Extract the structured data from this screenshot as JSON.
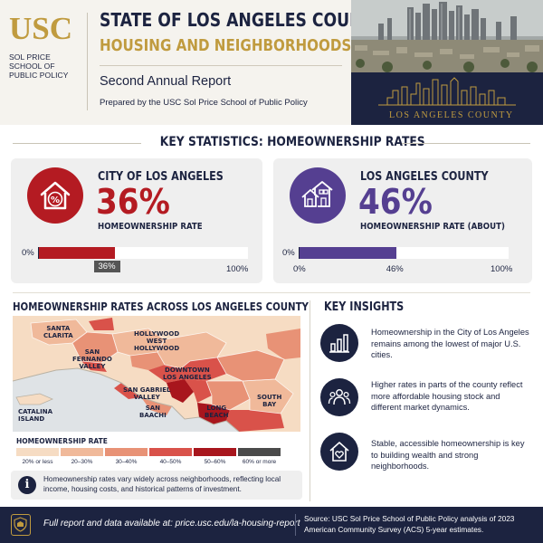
{
  "header": {
    "logo_text": "USC",
    "logo_sub": "SOL PRICE SCHOOL OF PUBLIC POLICY",
    "title_line1": "STATE OF LOS ANGELES COUNTY",
    "title_line2": "HOUSING AND NEIGHBORHOODS",
    "report_title": "Second Annual Report",
    "prepared_by": "Prepared by the USC Sol Price School of Public Policy",
    "photo_caption": "LOS ANGELES COUNTY"
  },
  "key_stats": {
    "section_title": "KEY STATISTICS: HOMEOWNERSHIP RATES",
    "city": {
      "label": "CITY OF LOS ANGELES",
      "value": "36%",
      "caption": "HOMEOWNERSHIP RATE",
      "rate": 36,
      "axis_min": "0%",
      "axis_max": "100%",
      "marker": "36%",
      "color": "#b41b22",
      "icon": "house-percent-icon"
    },
    "county": {
      "label": "LOS ANGELES COUNTY",
      "value": "46%",
      "caption": "HOMEOWNERSHIP RATE (ABOUT)",
      "rate": 46,
      "axis_min": "0%",
      "axis_zero": "0%",
      "axis_mid": "46%",
      "axis_max": "100%",
      "color": "#553f91",
      "icon": "houses-icon"
    }
  },
  "map": {
    "title": "HOMEOWNERSHIP RATES ACROSS LOS ANGELES COUNTY",
    "labels": {
      "santa_clarita": "SANTA\nCLARITA",
      "san_fernando": "SAN\nFERNANDO\nVALLEY",
      "hollywood": "HOLLYWOOD",
      "west_hollywood": "WEST\nHOLLYWOOD",
      "downtown": "DOWNTOWN\nLOS ANGELES",
      "san_gabriel": "SAN GABRIEL\nVALLEY",
      "san_baachi": "SAN\nBAACHI",
      "long_beach": "LONG\nBEACH",
      "south_bay": "SOUTH\nBAY",
      "catalina": "CATALINA\nISLAND"
    },
    "legend_title": "HOMEOWNERSHIP RATE",
    "legend": [
      {
        "label": "20% or less",
        "color": "#f6dcc3"
      },
      {
        "label": "20–30%",
        "color": "#f0b99a"
      },
      {
        "label": "30–40%",
        "color": "#e89276"
      },
      {
        "label": "40–50%",
        "color": "#d9524a"
      },
      {
        "label": "50–60%",
        "color": "#a8161d"
      },
      {
        "label": "60% or more",
        "color": "#4a4a4a"
      }
    ],
    "note": "Homeownership rates vary widely across neighborhoods, reflecting local income, housing costs, and historical patterns of investment."
  },
  "insights": {
    "title": "KEY INSIGHTS",
    "items": [
      {
        "icon": "bar-chart-icon",
        "text": "Homeownership in the City of Los Angeles remains among the lowest of major U.S. cities."
      },
      {
        "icon": "people-group-icon",
        "text": "Higher rates in parts of the county reflect more affordable housing stock and different market dynamics."
      },
      {
        "icon": "house-heart-icon",
        "text": "Stable, accessible homeownership is key to building wealth and strong neighborhoods."
      }
    ]
  },
  "footer": {
    "link_text": "Full report and data available at: price.usc.edu/la-housing-report",
    "source": "Source: USC Sol Price School of Public Policy analysis of 2023 American Community Survey (ACS) 5-year estimates."
  }
}
